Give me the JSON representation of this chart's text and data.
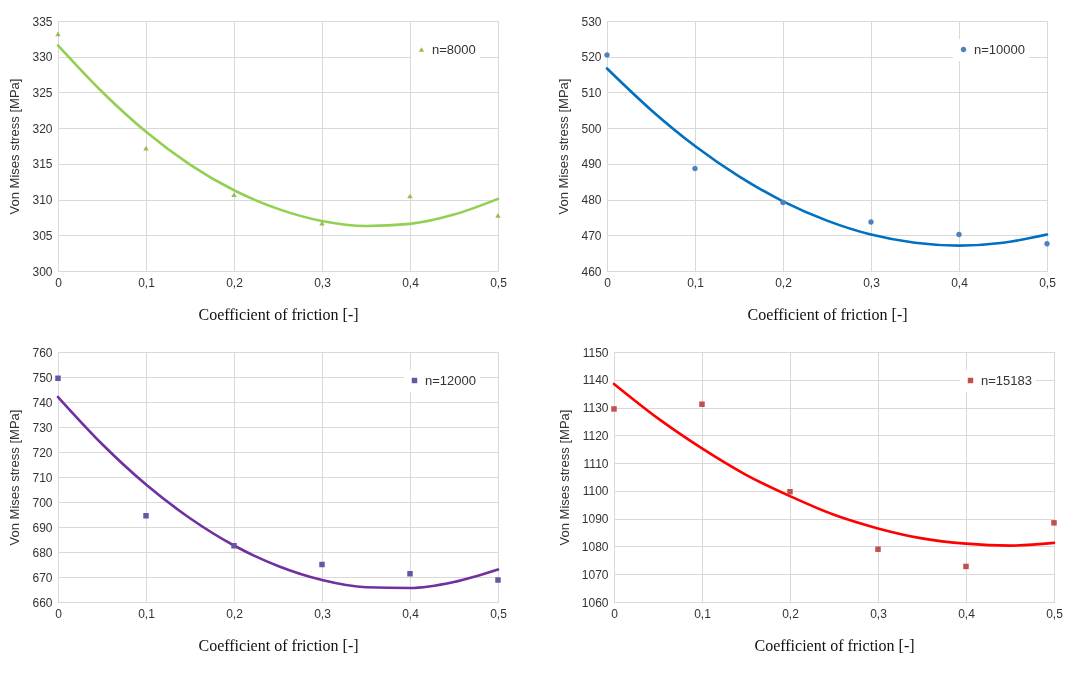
{
  "chart_data": [
    {
      "type": "scatter",
      "xlabel": "Coefficient of friction [-]",
      "ylabel": "Von Mises stress [MPa]",
      "x": [
        0,
        0.1,
        0.2,
        0.3,
        0.4,
        0.5
      ],
      "xlim": [
        0,
        0.5
      ],
      "xticks": [
        {
          "value": 0,
          "label": "0"
        },
        {
          "value": 0.1,
          "label": "0,1"
        },
        {
          "value": 0.2,
          "label": "0,2"
        },
        {
          "value": 0.3,
          "label": "0,3"
        },
        {
          "value": 0.4,
          "label": "0,4"
        },
        {
          "value": 0.5,
          "label": "0,5"
        }
      ],
      "ylim": [
        300,
        335
      ],
      "yticks": [
        300,
        305,
        310,
        315,
        320,
        325,
        330,
        335
      ],
      "grid": true,
      "legend": "top right",
      "marker": "triangle",
      "series": [
        {
          "name": "n=8000",
          "color": "#9bbb59",
          "values": [
            333.2,
            317.2,
            310.7,
            306.7,
            310.5,
            307.8
          ]
        },
        {
          "type": "line",
          "marker": "none",
          "color": "#92d050",
          "x": [
            0,
            0.05,
            0.1,
            0.15,
            0.2,
            0.25,
            0.3,
            0.35,
            0.4,
            0.45,
            0.5
          ],
          "values": [
            331.6,
            325.1,
            319.5,
            314.9,
            311.3,
            308.7,
            307.0,
            306.3,
            306.6,
            307.9,
            310.1
          ]
        }
      ]
    },
    {
      "type": "scatter",
      "xlabel": "Coefficient of friction [-]",
      "ylabel": "Von Mises stress [MPa]",
      "x": [
        0,
        0.1,
        0.2,
        0.3,
        0.4,
        0.5
      ],
      "xlim": [
        0,
        0.5
      ],
      "xticks": [
        {
          "value": 0,
          "label": "0"
        },
        {
          "value": 0.1,
          "label": "0,1"
        },
        {
          "value": 0.2,
          "label": "0,2"
        },
        {
          "value": 0.3,
          "label": "0,3"
        },
        {
          "value": 0.4,
          "label": "0,4"
        },
        {
          "value": 0.5,
          "label": "0,5"
        }
      ],
      "ylim": [
        460,
        530
      ],
      "yticks": [
        460,
        470,
        480,
        490,
        500,
        510,
        520,
        530
      ],
      "grid": true,
      "legend": "top right",
      "marker": "circle",
      "series": [
        {
          "name": "n=10000",
          "color": "#4f81bd",
          "values": [
            520.5,
            488.7,
            479.2,
            473.7,
            470.2,
            467.6
          ]
        },
        {
          "type": "line",
          "marker": "none",
          "color": "#0070c0",
          "x": [
            0,
            0.05,
            0.1,
            0.15,
            0.2,
            0.25,
            0.3,
            0.35,
            0.4,
            0.45,
            0.5
          ],
          "values": [
            516.7,
            505.1,
            495.0,
            486.5,
            479.5,
            474.1,
            470.2,
            467.9,
            467.1,
            467.9,
            470.2
          ]
        }
      ]
    },
    {
      "type": "scatter",
      "xlabel": "Coefficient of friction [-]",
      "ylabel": "Von Mises stress [MPa]",
      "x": [
        0,
        0.1,
        0.2,
        0.3,
        0.4,
        0.5
      ],
      "xlim": [
        0,
        0.5
      ],
      "xticks": [
        {
          "value": 0,
          "label": "0"
        },
        {
          "value": 0.1,
          "label": "0,1"
        },
        {
          "value": 0.2,
          "label": "0,2"
        },
        {
          "value": 0.3,
          "label": "0,3"
        },
        {
          "value": 0.4,
          "label": "0,4"
        },
        {
          "value": 0.5,
          "label": "0,5"
        }
      ],
      "ylim": [
        660,
        760
      ],
      "yticks": [
        660,
        670,
        680,
        690,
        700,
        710,
        720,
        730,
        740,
        750,
        760
      ],
      "grid": true,
      "legend": "top right",
      "marker": "square",
      "series": [
        {
          "name": "n=12000",
          "color": "#5f5aa2",
          "values": [
            749.5,
            694.5,
            682.5,
            675.0,
            671.3,
            668.8
          ]
        },
        {
          "type": "line",
          "marker": "none",
          "color": "#7030a0",
          "x": [
            0,
            0.05,
            0.1,
            0.15,
            0.2,
            0.25,
            0.3,
            0.35,
            0.4,
            0.45,
            0.5
          ],
          "values": [
            742.0,
            723.2,
            707.0,
            693.5,
            682.6,
            674.4,
            668.8,
            665.9,
            665.6,
            668.0,
            673.0
          ]
        }
      ]
    },
    {
      "type": "scatter",
      "xlabel": "Coefficient of friction [-]",
      "ylabel": "Von Mises stress [MPa]",
      "x": [
        0,
        0.1,
        0.2,
        0.3,
        0.4,
        0.5
      ],
      "xlim": [
        0,
        0.5
      ],
      "xticks": [
        {
          "value": 0,
          "label": "0"
        },
        {
          "value": 0.1,
          "label": "0,1"
        },
        {
          "value": 0.2,
          "label": "0,2"
        },
        {
          "value": 0.3,
          "label": "0,3"
        },
        {
          "value": 0.4,
          "label": "0,4"
        },
        {
          "value": 0.5,
          "label": "0,5"
        }
      ],
      "ylim": [
        1060,
        1150
      ],
      "yticks": [
        1060,
        1070,
        1080,
        1090,
        1100,
        1110,
        1120,
        1130,
        1140,
        1150
      ],
      "grid": true,
      "legend": "top right",
      "marker": "square",
      "series": [
        {
          "name": "n=15183",
          "color": "#c0504d",
          "values": [
            1129.5,
            1131.2,
            1099.7,
            1079.0,
            1072.8,
            1088.5
          ]
        },
        {
          "type": "line",
          "marker": "none",
          "color": "#ff0000",
          "x": [
            0,
            0.05,
            0.1,
            0.15,
            0.2,
            0.25,
            0.3,
            0.35,
            0.4,
            0.45,
            0.5
          ],
          "values": [
            1138.5,
            1126.1,
            1115.3,
            1105.8,
            1098.1,
            1091.4,
            1086.5,
            1082.9,
            1081.0,
            1080.3,
            1081.3
          ]
        }
      ]
    }
  ]
}
